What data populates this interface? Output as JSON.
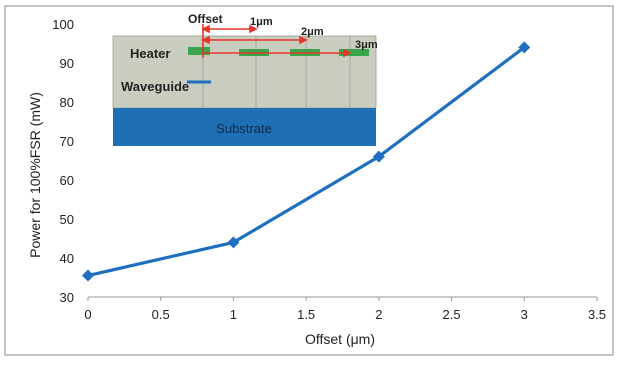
{
  "chart_data": {
    "type": "line",
    "title": "",
    "xlabel": "Offset (μm)",
    "ylabel": "Power for 100%FSR (mW)",
    "xlim": [
      0,
      3.5
    ],
    "ylim": [
      30,
      100
    ],
    "x_ticks": [
      "0",
      "0.5",
      "1",
      "1.5",
      "2",
      "2.5",
      "3",
      "3.5"
    ],
    "y_ticks": [
      "30",
      "40",
      "50",
      "60",
      "70",
      "80",
      "90",
      "100"
    ],
    "grid": false,
    "legend": "none",
    "series": [
      {
        "x": [
          0,
          1,
          2,
          3
        ],
        "y": [
          35.5,
          44,
          66,
          94
        ],
        "color": "#1f6fc0",
        "marker": "diamond"
      }
    ],
    "inset": {
      "offset_label": "Offset",
      "offset_values": [
        "1μm",
        "2μm",
        "3μm"
      ],
      "heater_label": "Heater",
      "waveguide_label": "Waveguide",
      "substrate_label": "Substrate",
      "colors": {
        "cladding": "#c8cdc0",
        "substrate": "#1e6fb4",
        "heater": "#3aa54a",
        "arrow": "#e8342a",
        "waveguide": "#1f6fc0"
      }
    }
  }
}
